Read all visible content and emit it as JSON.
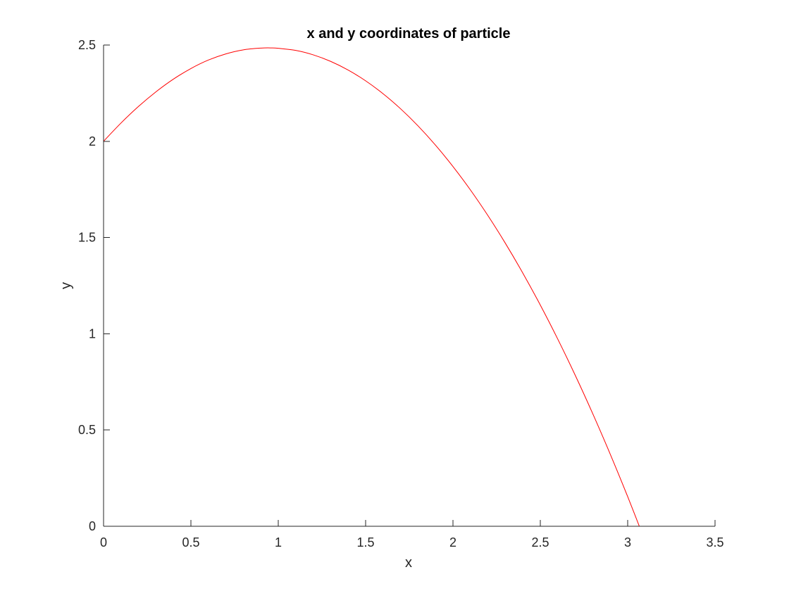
{
  "chart_data": {
    "type": "line",
    "title": "x and y coordinates of particle",
    "xlabel": "x",
    "ylabel": "y",
    "xlim": [
      0,
      3.5
    ],
    "ylim": [
      0,
      2.5
    ],
    "xticks": [
      "0",
      "0.5",
      "1",
      "1.5",
      "2",
      "2.5",
      "3",
      "3.5"
    ],
    "yticks": [
      "0",
      "0.5",
      "1",
      "1.5",
      "2",
      "2.5"
    ],
    "grid": false,
    "legend": "none",
    "series": [
      {
        "color": "#ff0000",
        "x": [
          0,
          0.1,
          0.2,
          0.3,
          0.4,
          0.5,
          0.6,
          0.7,
          0.8,
          0.9,
          0.96,
          1.0,
          1.1,
          1.2,
          1.3,
          1.4,
          1.5,
          1.6,
          1.7,
          1.8,
          1.9,
          2.0,
          2.1,
          2.2,
          2.3,
          2.4,
          2.5,
          2.6,
          2.7,
          2.8,
          2.9,
          3.0,
          3.1,
          3.14
        ],
        "y": [
          2.0,
          2.095,
          2.181,
          2.257,
          2.323,
          2.378,
          2.422,
          2.454,
          2.475,
          2.484,
          2.485,
          2.483,
          2.472,
          2.449,
          2.415,
          2.37,
          2.314,
          2.247,
          2.169,
          2.08,
          1.98,
          1.869,
          1.747,
          1.614,
          1.47,
          1.315,
          1.149,
          0.972,
          0.784,
          0.585,
          0.375,
          0.154,
          -0.078,
          -0.173
        ]
      }
    ]
  }
}
